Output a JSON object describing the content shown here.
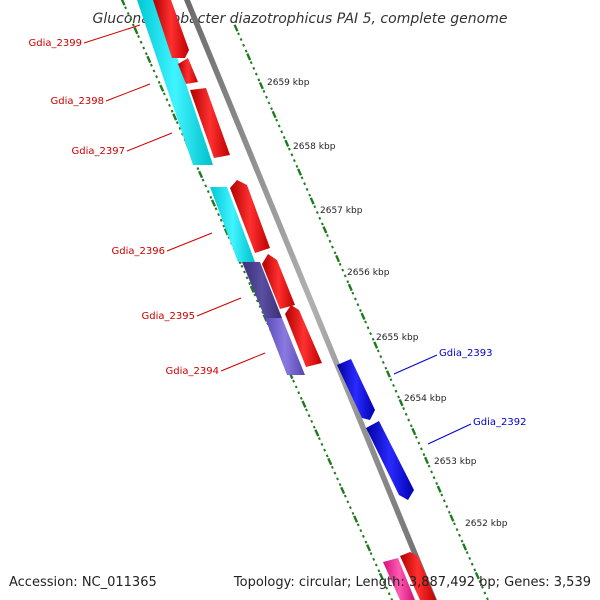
{
  "title": "Gluconacetobacter diazotrophicus PAI 5, complete genome",
  "footer": {
    "accession": "Accession: NC_011365",
    "summary": "Topology: circular; Length: 3,887,492 bp; Genes: 3,539"
  },
  "ruler": {
    "labels": [
      "2659 kbp",
      "2658 kbp",
      "2657 kbp",
      "2656 kbp",
      "2655 kbp",
      "2654 kbp",
      "2653 kbp",
      "2652 kbp"
    ],
    "color": "#1f7a1f"
  },
  "backbone_color": "#808080",
  "genes_forward": [
    {
      "name": "Gdia_2399",
      "color": "#cc0000"
    },
    {
      "name": "Gdia_2398",
      "color": "#cc0000"
    },
    {
      "name": "Gdia_2397",
      "color": "#cc0000"
    },
    {
      "name": "Gdia_2396",
      "color": "#cc0000"
    },
    {
      "name": "Gdia_2395",
      "color": "#cc0000"
    },
    {
      "name": "Gdia_2394",
      "color": "#cc0000"
    }
  ],
  "genes_reverse": [
    {
      "name": "Gdia_2393",
      "color": "#0000cc"
    },
    {
      "name": "Gdia_2392",
      "color": "#0000cc"
    }
  ],
  "feature_colors": {
    "cds_forward": "#ff0000",
    "cds_reverse": "#0000ff",
    "cog_cyan": "#00e5ee",
    "cog_purple": "#6a5acd",
    "cog_dark": "#483d8b",
    "rna_pink": "#ff1493"
  }
}
